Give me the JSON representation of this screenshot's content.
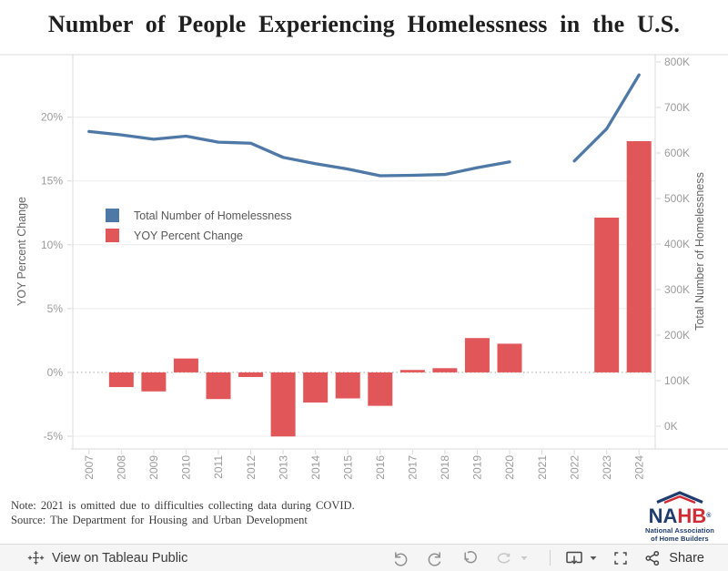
{
  "title": "Number of People Experiencing Homelessness in the U.S.",
  "chart_data": {
    "type": "combo-line-bar",
    "categories": [
      "2007",
      "2008",
      "2009",
      "2010",
      "2011",
      "2012",
      "2013",
      "2014",
      "2015",
      "2016",
      "2017",
      "2018",
      "2019",
      "2020",
      "2021",
      "2022",
      "2023",
      "2024"
    ],
    "series": [
      {
        "name": "Total Number of Homelessness",
        "type": "line",
        "axis": "right",
        "color": "#4e79a7",
        "values": [
          647258,
          639784,
          630227,
          637077,
          623788,
          621553,
          590364,
          576450,
          564708,
          549928,
          550996,
          552830,
          567715,
          580466,
          null,
          582462,
          653104,
          771480
        ]
      },
      {
        "name": "YOY Percent Change",
        "type": "bar",
        "axis": "left",
        "color": "#e15759",
        "values": [
          null,
          -1.15,
          -1.49,
          1.09,
          -2.09,
          -0.36,
          -5.02,
          -2.36,
          -2.04,
          -2.62,
          0.19,
          0.33,
          2.69,
          2.25,
          null,
          null,
          12.13,
          18.12
        ]
      }
    ],
    "left_axis": {
      "title": "YOY Percent Change",
      "min": -6,
      "max": 24.9,
      "tick_values": [
        -5,
        0,
        5,
        10,
        15,
        20
      ],
      "tick_labels": [
        "-5%",
        "0%",
        "5%",
        "10%",
        "15%",
        "20%"
      ],
      "zero_line": "dotted"
    },
    "right_axis": {
      "title": "Total Number of Homelessness",
      "min": -50000,
      "max": 816000,
      "tick_values": [
        0,
        100000,
        200000,
        300000,
        400000,
        500000,
        600000,
        700000,
        800000
      ],
      "tick_labels": [
        "0K",
        "100K",
        "200K",
        "300K",
        "400K",
        "500K",
        "600K",
        "700K",
        "800K"
      ]
    },
    "legend": {
      "position": "inside-top-left",
      "items": [
        {
          "label": "Total Number of Homelessness",
          "color": "#4e79a7"
        },
        {
          "label": "YOY Percent Change",
          "color": "#e15759"
        }
      ]
    },
    "grid": "horizontal"
  },
  "notes": {
    "note": "Note: 2021 is omitted due to difficulties collecting data during COVID.",
    "source": "Source: The Department for Housing and Urban Development"
  },
  "logo": {
    "left": "NA",
    "right": "HB",
    "registered": "®",
    "star": "★",
    "tagline1": "National Association",
    "tagline2": "of Home Builders",
    "blue": "#1e3c6e",
    "red": "#cf2c33"
  },
  "toolbar": {
    "view_label": "View on Tableau Public",
    "share_label": "Share"
  }
}
